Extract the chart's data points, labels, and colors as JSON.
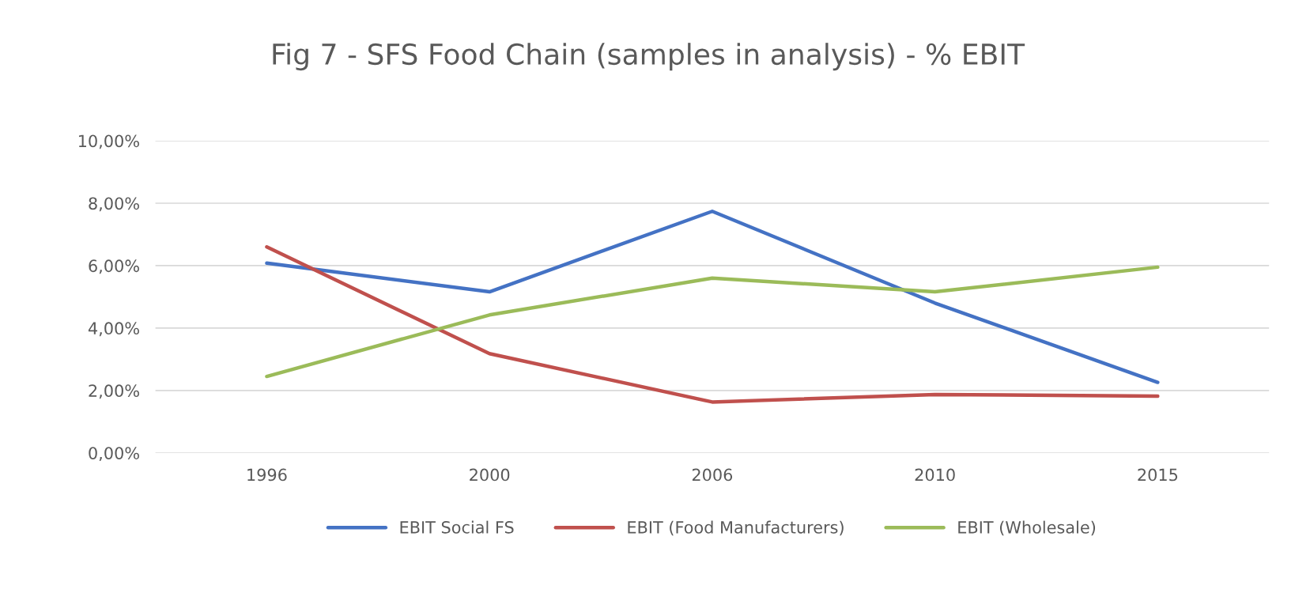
{
  "chart_data": {
    "type": "line",
    "title": "Fig 7 - SFS Food Chain (samples in analysis) - % EBIT",
    "categories": [
      "1996",
      "2000",
      "2006",
      "2010",
      "2015"
    ],
    "series": [
      {
        "name": "EBIT Social FS",
        "color": "#4472c4",
        "values": [
          6.08,
          5.16,
          7.74,
          4.8,
          2.26
        ]
      },
      {
        "name": "EBIT (Food Manufacturers)",
        "color": "#c0504d",
        "values": [
          6.6,
          3.18,
          1.63,
          1.87,
          1.82
        ]
      },
      {
        "name": "EBIT (Wholesale)",
        "color": "#9bbb59",
        "values": [
          2.45,
          4.42,
          5.6,
          5.16,
          5.95
        ]
      }
    ],
    "ylim": [
      0,
      10
    ],
    "yticks": [
      {
        "value": 0,
        "label": "0,00%"
      },
      {
        "value": 2,
        "label": "2,00%"
      },
      {
        "value": 4,
        "label": "4,00%"
      },
      {
        "value": 6,
        "label": "6,00%"
      },
      {
        "value": 8,
        "label": "8,00%"
      },
      {
        "value": 10,
        "label": "10,00%"
      }
    ],
    "grid": "y",
    "legend": "bottom",
    "marker": "none",
    "line_style": "solid"
  }
}
